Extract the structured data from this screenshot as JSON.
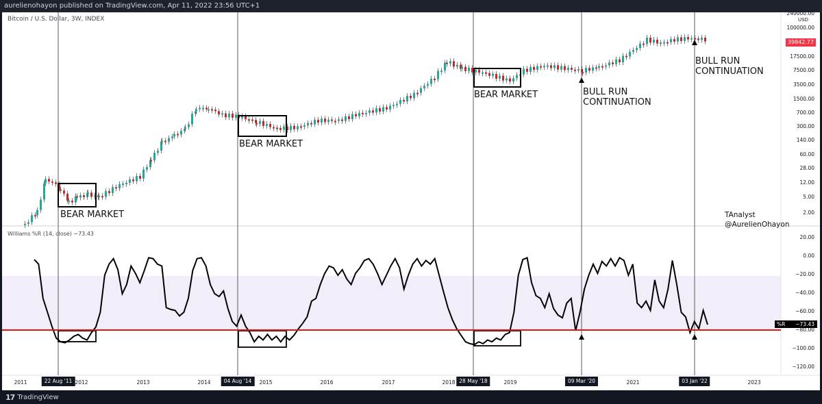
{
  "topbar": {
    "text": "aurelienohayon published on TradingView.com, Apr 11, 2022 23:56 UTC+1"
  },
  "chart": {
    "symbol_label": "Bitcoin / U.S. Dollar, 3W, INDEX",
    "currency": "USD",
    "last_price": "39842.77",
    "price_ticks": [
      "240000.00",
      "100000.00",
      "39842.77",
      "17500.00",
      "7500.00",
      "3500.00",
      "1500.00",
      "700.00",
      "300.00",
      "140.00",
      "60.00",
      "28.00",
      "12.00",
      "5.00",
      "2.00"
    ],
    "annotations": {
      "bear1": "BEAR MARKET",
      "bear2": "BEAR MARKET",
      "bear3": "BEAR MARKET",
      "bull1_line1": "BULL RUN",
      "bull1_line2": "CONTINUATION",
      "bull2_line1": "BULL RUN",
      "bull2_line2": "CONTINUATION"
    },
    "credit_line1": "TAnalyst",
    "credit_line2": "@AurelienOhayon"
  },
  "indicator": {
    "label": "Williams %R (14, close)  −73.43",
    "name_short": "%R",
    "value": "−73.43",
    "ticks": [
      "20.00",
      "0.00",
      "−20.00",
      "−40.00",
      "−60.00",
      "−80.00",
      "−100.00",
      "−120.00"
    ],
    "oversold_level": -80,
    "overbought_level": -20
  },
  "x_axis": {
    "years": [
      "2011",
      "2012",
      "2013",
      "2014",
      "2015",
      "2016",
      "2017",
      "2018",
      "2019",
      "2021",
      "2023"
    ],
    "highlighted_dates": [
      "22 Aug '11",
      "04 Aug '14",
      "28 May '18",
      "09 Mar '20",
      "03 Jan '22"
    ]
  },
  "chart_data": {
    "type": "line",
    "title": "",
    "series": [
      {
        "name": "Williams %R",
        "values": [
          -3,
          -8,
          -45,
          -60,
          -75,
          -88,
          -92,
          -93,
          -90,
          -86,
          -84,
          -88,
          -90,
          -82,
          -76,
          -60,
          -20,
          -8,
          -2,
          -14,
          -40,
          -30,
          -10,
          -18,
          -28,
          -15,
          -1,
          -2,
          -8,
          -10,
          -55,
          -57,
          -58,
          -64,
          -60,
          -45,
          -15,
          -2,
          -1,
          -10,
          -30,
          -40,
          -43,
          -37,
          -56,
          -70,
          -75,
          -63,
          -75,
          -82,
          -92,
          -86,
          -90,
          -84,
          -90,
          -86,
          -92,
          -86,
          -90,
          -85,
          -78,
          -72,
          -65,
          -48,
          -45,
          -30,
          -18,
          -10,
          -12,
          -20,
          -14,
          -24,
          -30,
          -18,
          -12,
          -4,
          -2,
          -8,
          -18,
          -30,
          -20,
          -10,
          -2,
          -12,
          -35,
          -20,
          -8,
          -2,
          -10,
          -4,
          -8,
          -2,
          -20,
          -38,
          -55,
          -68,
          -78,
          -85,
          -92,
          -94,
          -95,
          -92,
          -94,
          -90,
          -92,
          -88,
          -90,
          -84,
          -82,
          -60,
          -20,
          -3,
          -1,
          -28,
          -42,
          -45,
          -55,
          -40,
          -56,
          -63,
          -66,
          -50,
          -45,
          -80,
          -60,
          -35,
          -20,
          -8,
          -18,
          -5,
          -10,
          -2,
          -10,
          -1,
          -4,
          -20,
          -8,
          -50,
          -55,
          -48,
          -58,
          -25,
          -48,
          -55,
          -35,
          -4,
          -30,
          -60,
          -65,
          -82,
          -70,
          -78,
          -58,
          -73.43
        ]
      }
    ],
    "ylim": [
      -130,
      25
    ],
    "ticks": [
      "20.00",
      "0.00",
      "−20.00",
      "−40.00",
      "−60.00",
      "−80.00",
      "−100.00",
      "−120.00"
    ]
  }
}
